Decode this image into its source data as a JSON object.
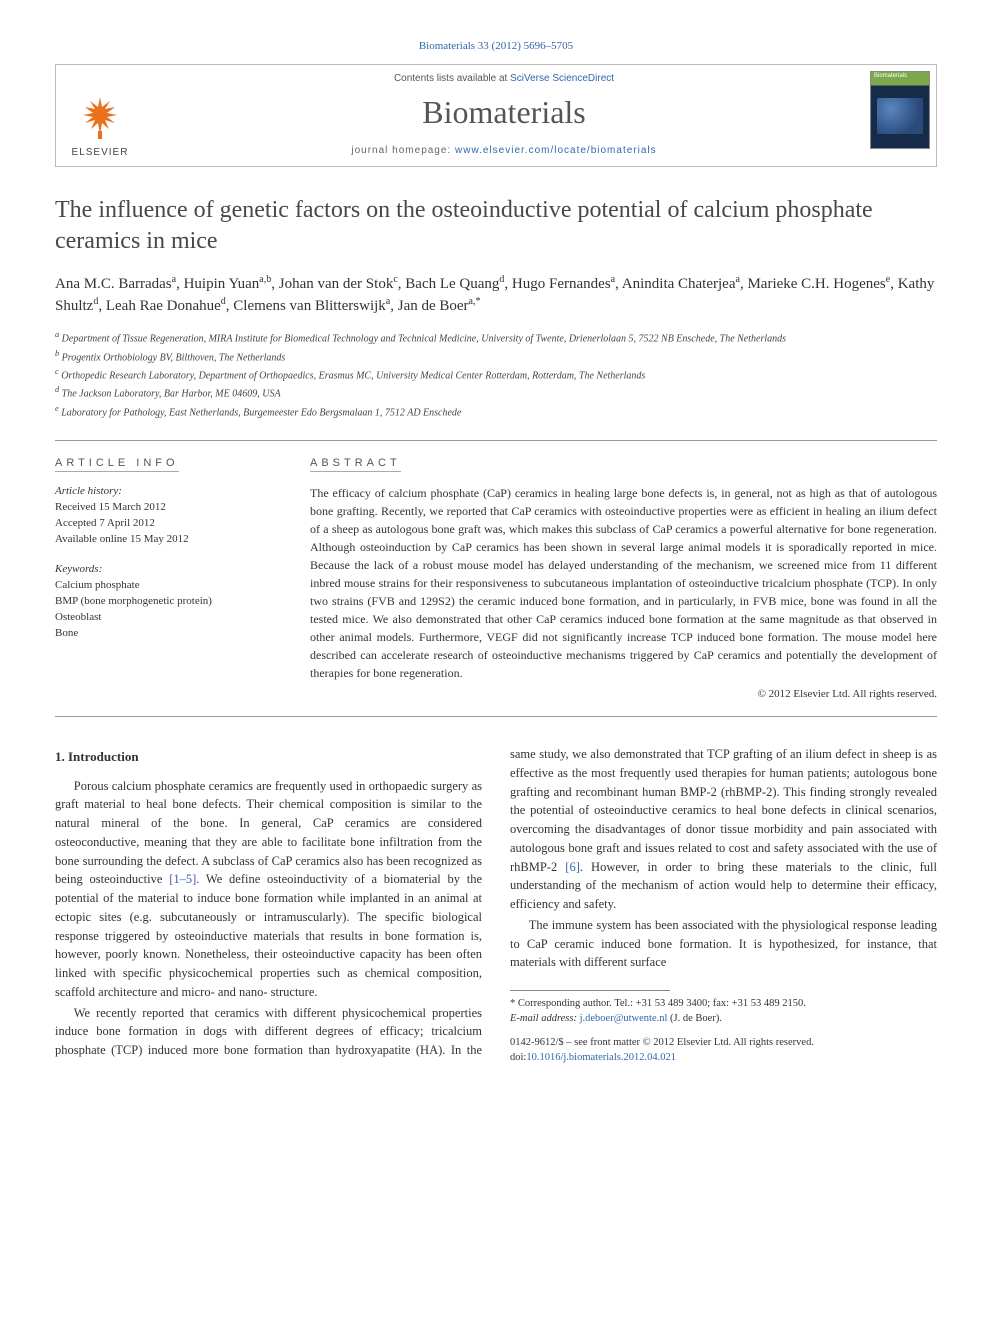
{
  "citation": {
    "journal": "Biomaterials",
    "volume": "33",
    "year": "2012",
    "pages": "5696–5705",
    "full": "Biomaterials 33 (2012) 5696–5705"
  },
  "header": {
    "contents_prefix": "Contents lists available at ",
    "contents_link": "SciVerse ScienceDirect",
    "journal_name": "Biomaterials",
    "homepage_prefix": "journal homepage: ",
    "homepage_link": "www.elsevier.com/locate/biomaterials",
    "elsevier_label": "ELSEVIER",
    "cover_label": "Biomaterials"
  },
  "title": "The influence of genetic factors on the osteoinductive potential of calcium phosphate ceramics in mice",
  "authors_html": "Ana M.C. Barradas<sup>a</sup>, Huipin Yuan<sup>a,b</sup>, Johan van der Stok<sup>c</sup>, Bach Le Quang<sup>d</sup>, Hugo Fernandes<sup>a</sup>, Anindita Chaterjea<sup>a</sup>, Marieke C.H. Hogenes<sup>e</sup>, Kathy Shultz<sup>d</sup>, Leah Rae Donahue<sup>d</sup>, Clemens van Blitterswijk<sup>a</sup>, Jan de Boer<sup>a,*</sup>",
  "affiliations": [
    "<sup>a</sup> Department of Tissue Regeneration, MIRA Institute for Biomedical Technology and Technical Medicine, University of Twente, Drienerlolaan 5, 7522 NB Enschede, The Netherlands",
    "<sup>b</sup> Progentix Orthobiology BV, Bilthoven, The Netherlands",
    "<sup>c</sup> Orthopedic Research Laboratory, Department of Orthopaedics, Erasmus MC, University Medical Center Rotterdam, Rotterdam, The Netherlands",
    "<sup>d</sup> The Jackson Laboratory, Bar Harbor, ME 04609, USA",
    "<sup>e</sup> Laboratory for Pathology, East Netherlands, Burgemeester Edo Bergsmalaan 1, 7512 AD Enschede"
  ],
  "article_info": {
    "label": "ARTICLE INFO",
    "history_label": "Article history:",
    "received": "Received 15 March 2012",
    "accepted": "Accepted 7 April 2012",
    "online": "Available online 15 May 2012",
    "keywords_label": "Keywords:",
    "keywords": [
      "Calcium phosphate",
      "BMP (bone morphogenetic protein)",
      "Osteoblast",
      "Bone"
    ]
  },
  "abstract": {
    "label": "ABSTRACT",
    "text": "The efficacy of calcium phosphate (CaP) ceramics in healing large bone defects is, in general, not as high as that of autologous bone grafting. Recently, we reported that CaP ceramics with osteoinductive properties were as efficient in healing an ilium defect of a sheep as autologous bone graft was, which makes this subclass of CaP ceramics a powerful alternative for bone regeneration. Although osteoinduction by CaP ceramics has been shown in several large animal models it is sporadically reported in mice. Because the lack of a robust mouse model has delayed understanding of the mechanism, we screened mice from 11 different inbred mouse strains for their responsiveness to subcutaneous implantation of osteoinductive tricalcium phosphate (TCP). In only two strains (FVB and 129S2) the ceramic induced bone formation, and in particularly, in FVB mice, bone was found in all the tested mice. We also demonstrated that other CaP ceramics induced bone formation at the same magnitude as that observed in other animal models. Furthermore, VEGF did not significantly increase TCP induced bone formation. The mouse model here described can accelerate research of osteoinductive mechanisms triggered by CaP ceramics and potentially the development of therapies for bone regeneration.",
    "copyright": "© 2012 Elsevier Ltd. All rights reserved."
  },
  "body": {
    "intro_heading": "1. Introduction",
    "p1": "Porous calcium phosphate ceramics are frequently used in orthopaedic surgery as graft material to heal bone defects. Their chemical composition is similar to the natural mineral of the bone. In general, CaP ceramics are considered osteoconductive, meaning that they are able to facilitate bone infiltration from the bone surrounding the defect. A subclass of CaP ceramics also has been recognized as being osteoinductive ",
    "p1_ref": "[1–5]",
    "p1b": ". We define osteoinductivity of a biomaterial by the potential of the material to induce bone formation while implanted in an animal at ectopic sites (e.g. subcutaneously or intramuscularly). The specific biological response triggered by osteoinductive materials that results in bone formation is, however, poorly known. Nonetheless, their osteoinductive capacity has been often linked with specific physicochemical properties such as chemical composition, scaffold architecture and micro- and nano- structure.",
    "p2": "We recently reported that ceramics with different physicochemical properties induce bone formation in dogs with different degrees of efficacy; tricalcium phosphate (TCP) induced more bone formation than hydroxyapatite (HA). In the same study, we also demonstrated that TCP grafting of an ilium defect in sheep is as effective as the most frequently used therapies for human patients; autologous bone grafting and recombinant human BMP-2 (rhBMP-2). This finding strongly revealed the potential of osteoinductive ceramics to heal bone defects in clinical scenarios, overcoming the disadvantages of donor tissue morbidity and pain associated with autologous bone graft and issues related to cost and safety associated with the use of rhBMP-2 ",
    "p2_ref": "[6]",
    "p2b": ". However, in order to bring these materials to the clinic, full understanding of the mechanism of action would help to determine their efficacy, efficiency and safety.",
    "p3": "The immune system has been associated with the physiological response leading to CaP ceramic induced bone formation. It is hypothesized, for instance, that materials with different surface"
  },
  "footer": {
    "corr_label": "* Corresponding author. Tel.: +31 53 489 3400; fax: +31 53 489 2150.",
    "email_label": "E-mail address:",
    "email": "j.deboer@utwente.nl",
    "email_name": "(J. de Boer).",
    "front_matter": "0142-9612/$ – see front matter © 2012 Elsevier Ltd. All rights reserved.",
    "doi_label": "doi:",
    "doi": "10.1016/j.biomaterials.2012.04.021"
  },
  "colors": {
    "link": "#3366aa",
    "text": "#333333",
    "heading": "#484848",
    "border": "#bbbbbb",
    "elsevier_orange": "#e9711c"
  }
}
